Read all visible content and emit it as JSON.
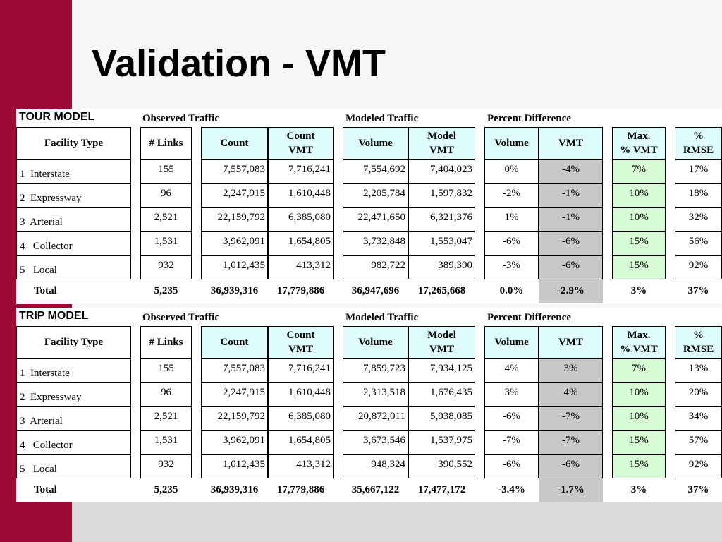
{
  "title": "Validation - VMT",
  "columns": {
    "facility_type": "Facility Type",
    "links": "# Links",
    "count": "Count",
    "count_vmt": "Count\nVMT",
    "volume": "Volume",
    "model_vmt": "Model\nVMT",
    "pd_volume": "Volume",
    "pd_vmt": "VMT",
    "max_vmt": "Max.\n% VMT",
    "rmse": "%\nRMSE"
  },
  "models": [
    {
      "label": "TOUR MODEL",
      "group_observed": "Observed Traffic",
      "group_modeled": "Modeled Traffic",
      "group_percent": "Percent Difference",
      "rows": [
        [
          "1  Interstate",
          "155",
          "7,557,083",
          "7,716,241",
          "7,554,692",
          "7,404,023",
          "0%",
          "-4%",
          "7%",
          "17%"
        ],
        [
          "2  Expressway",
          "96",
          "2,247,915",
          "1,610,448",
          "2,205,784",
          "1,597,832",
          "-2%",
          "-1%",
          "10%",
          "18%"
        ],
        [
          "3  Arterial",
          "2,521",
          "22,159,792",
          "6,385,080",
          "22,471,650",
          "6,321,376",
          "1%",
          "-1%",
          "10%",
          "32%"
        ],
        [
          "4   Collector",
          "1,531",
          "3,962,091",
          "1,654,805",
          "3,732,848",
          "1,553,047",
          "-6%",
          "-6%",
          "15%",
          "56%"
        ],
        [
          "5   Local",
          "932",
          "1,012,435",
          "413,312",
          "982,722",
          "389,390",
          "-3%",
          "-6%",
          "15%",
          "92%"
        ]
      ],
      "total": [
        "Total",
        "5,235",
        "36,939,316",
        "17,779,886",
        "36,947,696",
        "17,265,668",
        "0.0%",
        "-2.9%",
        "3%",
        "37%"
      ]
    },
    {
      "label": "TRIP MODEL",
      "group_observed": "Observed Traffic",
      "group_modeled": "Modeled Traffic",
      "group_percent": "Percent Difference",
      "rows": [
        [
          "1  Interstate",
          "155",
          "7,557,083",
          "7,716,241",
          "7,859,723",
          "7,934,125",
          "4%",
          "3%",
          "7%",
          "13%"
        ],
        [
          "2  Expressway",
          "96",
          "2,247,915",
          "1,610,448",
          "2,313,518",
          "1,676,435",
          "3%",
          "4%",
          "10%",
          "20%"
        ],
        [
          "3  Arterial",
          "2,521",
          "22,159,792",
          "6,385,080",
          "20,872,011",
          "5,938,085",
          "-6%",
          "-7%",
          "10%",
          "34%"
        ],
        [
          "4   Collector",
          "1,531",
          "3,962,091",
          "1,654,805",
          "3,673,546",
          "1,537,975",
          "-7%",
          "-7%",
          "15%",
          "57%"
        ],
        [
          "5   Local",
          "932",
          "1,012,435",
          "413,312",
          "948,324",
          "390,552",
          "-6%",
          "-6%",
          "15%",
          "92%"
        ]
      ],
      "total": [
        "Total",
        "5,235",
        "36,939,316",
        "17,779,886",
        "35,667,122",
        "17,477,172",
        "-3.4%",
        "-1.7%",
        "3%",
        "37%"
      ]
    }
  ],
  "colors": {
    "accent_bar": "#9b0a35",
    "header_cyan": "#ddfcfb",
    "target_green": "#d7fbd2",
    "vmt_gray": "#c8c8c8"
  }
}
